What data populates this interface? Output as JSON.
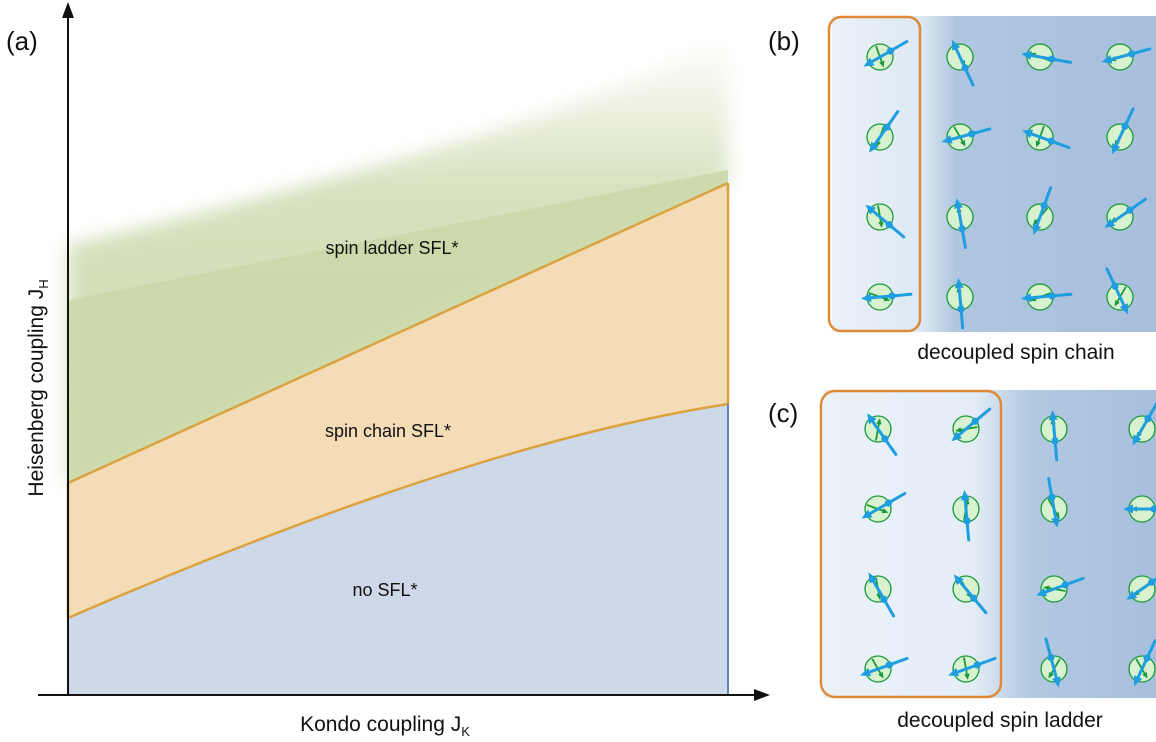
{
  "panels": {
    "a": {
      "label": "(a)"
    },
    "b": {
      "label": "(b)",
      "caption": "decoupled spin chain"
    },
    "c": {
      "label": "(c)",
      "caption": "decoupled spin ladder"
    }
  },
  "axes": {
    "x": {
      "label": "Kondo coupling J",
      "subscript": "K"
    },
    "y": {
      "label": "Heisenberg coupling J",
      "subscript": "H"
    }
  },
  "regions": {
    "ladder": "spin ladder SFL*",
    "chain": "spin chain SFL*",
    "none": "no SFL*"
  },
  "colors": {
    "ladder_fill": "#c9d7a8",
    "chain_fill": "#f3dcb6",
    "none_fill": "#cdd8e8",
    "boundary": "#dca23e",
    "box_outline": "#de8a37",
    "lattice_bg": "#a7bfdd",
    "decoupled_bg": "#eaf2f9",
    "conduction_arrow": "#1e9ee0",
    "local_spin_arrow": "#1a9a3a",
    "local_spin_circle": "#d8f2cf"
  },
  "icons": {
    "conduction_spin": "blue-arrow-with-dot",
    "local_moment": "green-arrow-in-circle"
  },
  "lattice_b": {
    "rows": 4,
    "cols": 4,
    "boxed_columns": 1,
    "conduction_angles": [
      [
        210,
        115,
        170,
        195
      ],
      [
        235,
        195,
        160,
        245
      ],
      [
        140,
        100,
        250,
        215
      ],
      [
        185,
        95,
        185,
        295
      ]
    ],
    "local_angles": [
      [
        290,
        300,
        160,
        200
      ],
      [
        250,
        300,
        250,
        240
      ],
      [
        280,
        100,
        230,
        210
      ],
      [
        340,
        100,
        200,
        240
      ]
    ]
  },
  "lattice_c": {
    "rows": 4,
    "cols": 4,
    "boxed_columns": 2,
    "conduction_angles": [
      [
        125,
        220,
        95,
        240
      ],
      [
        210,
        95,
        280,
        180
      ],
      [
        120,
        130,
        200,
        215
      ],
      [
        200,
        200,
        285,
        245
      ]
    ],
    "local_angles": [
      [
        80,
        190,
        100,
        240
      ],
      [
        340,
        80,
        300,
        180
      ],
      [
        280,
        300,
        170,
        220
      ],
      [
        300,
        280,
        240,
        300
      ]
    ]
  }
}
